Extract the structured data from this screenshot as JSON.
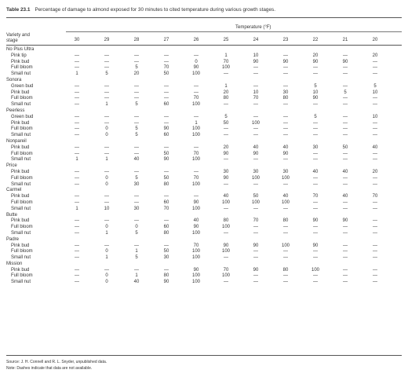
{
  "table": {
    "number": "Table 23.1",
    "caption": "Percentage of damage to almond exposed for 30 minutes to cited temperature during various growth stages.",
    "header_variety_line1": "Variety and",
    "header_variety_line2": "stage",
    "header_temperature": "Temperature (°F)",
    "columns": [
      "30",
      "29",
      "28",
      "27",
      "26",
      "25",
      "24",
      "23",
      "22",
      "21",
      "20"
    ],
    "groups": [
      {
        "variety": "No Plus Ultra",
        "rows": [
          {
            "stage": "Pink tip",
            "values": [
              "—",
              "—",
              "—",
              "—",
              "—",
              "1",
              "10",
              "—",
              "20",
              "—",
              "20"
            ]
          },
          {
            "stage": "Pink bud",
            "values": [
              "—",
              "—",
              "—",
              "—",
              "0",
              "70",
              "90",
              "90",
              "90",
              "90",
              "—"
            ]
          },
          {
            "stage": "Full bloom",
            "values": [
              "—",
              "—",
              "5",
              "70",
              "90",
              "100",
              "—",
              "—",
              "—",
              "—",
              "—"
            ]
          },
          {
            "stage": "Small nut",
            "values": [
              "1",
              "5",
              "20",
              "50",
              "100",
              "—",
              "—",
              "—",
              "—",
              "—",
              "—"
            ]
          }
        ]
      },
      {
        "variety": "Sonora",
        "rows": [
          {
            "stage": "Green bud",
            "values": [
              "—",
              "—",
              "—",
              "—",
              "—",
              "1",
              "—",
              "—",
              "5",
              "—",
              "5"
            ]
          },
          {
            "stage": "Pink bud",
            "values": [
              "—",
              "—",
              "—",
              "—",
              "—",
              "20",
              "10",
              "30",
              "10",
              "5",
              "10"
            ]
          },
          {
            "stage": "Full bloom",
            "values": [
              "—",
              "—",
              "—",
              "—",
              "70",
              "80",
              "70",
              "80",
              "90",
              "—",
              "—"
            ]
          },
          {
            "stage": "Small nut",
            "values": [
              "—",
              "1",
              "5",
              "60",
              "100",
              "—",
              "—",
              "—",
              "—",
              "—",
              "—"
            ]
          }
        ]
      },
      {
        "variety": "Peerless",
        "rows": [
          {
            "stage": "Green bud",
            "values": [
              "—",
              "—",
              "—",
              "—",
              "—",
              "5",
              "—",
              "—",
              "5",
              "—",
              "10"
            ]
          },
          {
            "stage": "Pink bud",
            "values": [
              "—",
              "—",
              "—",
              "—",
              "1",
              "50",
              "100",
              "—",
              "—",
              "—",
              "—"
            ]
          },
          {
            "stage": "Full bloom",
            "values": [
              "—",
              "0",
              "5",
              "90",
              "100",
              "—",
              "—",
              "—",
              "—",
              "—",
              "—"
            ]
          },
          {
            "stage": "Small nut",
            "values": [
              "—",
              "0",
              "5",
              "60",
              "100",
              "—",
              "—",
              "—",
              "—",
              "—",
              "—"
            ]
          }
        ]
      },
      {
        "variety": "Nonpareil",
        "rows": [
          {
            "stage": "Pink bud",
            "values": [
              "—",
              "—",
              "—",
              "—",
              "—",
              "20",
              "40",
              "40",
              "30",
              "50",
              "40"
            ]
          },
          {
            "stage": "Full bloom",
            "values": [
              "—",
              "—",
              "—",
              "50",
              "70",
              "90",
              "90",
              "90",
              "—",
              "—",
              "—"
            ]
          },
          {
            "stage": "Small nut",
            "values": [
              "1",
              "1",
              "40",
              "90",
              "100",
              "—",
              "—",
              "—",
              "—",
              "—",
              "—"
            ]
          }
        ]
      },
      {
        "variety": "Price",
        "rows": [
          {
            "stage": "Pink bud",
            "values": [
              "—",
              "—",
              "—",
              "—",
              "—",
              "30",
              "30",
              "30",
              "40",
              "40",
              "20"
            ]
          },
          {
            "stage": "Full bloom",
            "values": [
              "—",
              "0",
              "5",
              "50",
              "70",
              "90",
              "100",
              "100",
              "—",
              "—",
              "—"
            ]
          },
          {
            "stage": "Small nut",
            "values": [
              "—",
              "0",
              "30",
              "80",
              "100",
              "—",
              "—",
              "—",
              "—",
              "—",
              "—"
            ]
          }
        ]
      },
      {
        "variety": "Carmel",
        "rows": [
          {
            "stage": "Pink bud",
            "values": [
              "—",
              "—",
              "—",
              "—",
              "—",
              "40",
              "50",
              "40",
              "70",
              "40",
              "70"
            ]
          },
          {
            "stage": "Full bloom",
            "values": [
              "—",
              "—",
              "—",
              "60",
              "90",
              "100",
              "100",
              "100",
              "—",
              "—",
              "—"
            ]
          },
          {
            "stage": "Small nut",
            "values": [
              "1",
              "10",
              "30",
              "70",
              "100",
              "—",
              "—",
              "—",
              "—",
              "—",
              "—"
            ]
          }
        ]
      },
      {
        "variety": "Butte",
        "rows": [
          {
            "stage": "Pink bud",
            "values": [
              "—",
              "—",
              "—",
              "—",
              "40",
              "80",
              "70",
              "80",
              "90",
              "90",
              "—"
            ]
          },
          {
            "stage": "Full bloom",
            "values": [
              "—",
              "0",
              "0",
              "60",
              "90",
              "100",
              "—",
              "—",
              "—",
              "—",
              "—"
            ]
          },
          {
            "stage": "Small nut",
            "values": [
              "—",
              "1",
              "5",
              "80",
              "100",
              "—",
              "—",
              "—",
              "—",
              "—",
              "—"
            ]
          }
        ]
      },
      {
        "variety": "Padre",
        "rows": [
          {
            "stage": "Pink bud",
            "values": [
              "—",
              "—",
              "—",
              "—",
              "70",
              "90",
              "90",
              "100",
              "90",
              "—",
              "—"
            ]
          },
          {
            "stage": "Full bloom",
            "values": [
              "—",
              "0",
              "1",
              "50",
              "100",
              "100",
              "—",
              "—",
              "—",
              "—",
              "—"
            ]
          },
          {
            "stage": "Small nut",
            "values": [
              "—",
              "1",
              "5",
              "30",
              "100",
              "—",
              "—",
              "—",
              "—",
              "—",
              "—"
            ]
          }
        ]
      },
      {
        "variety": "Mission",
        "rows": [
          {
            "stage": "Pink bud",
            "values": [
              "—",
              "—",
              "—",
              "—",
              "90",
              "70",
              "90",
              "80",
              "100",
              "—",
              "—"
            ]
          },
          {
            "stage": "Full bloom",
            "values": [
              "—",
              "0",
              "1",
              "80",
              "100",
              "100",
              "—",
              "—",
              "—",
              "—",
              "—"
            ]
          },
          {
            "stage": "Small nut",
            "values": [
              "—",
              "0",
              "40",
              "90",
              "100",
              "—",
              "—",
              "—",
              "—",
              "—",
              "—"
            ]
          }
        ]
      }
    ],
    "source": "Source: J. H. Connell and R. L. Snyder, unpublished data.",
    "note": "Note: Dashes indicate that data are not available."
  }
}
